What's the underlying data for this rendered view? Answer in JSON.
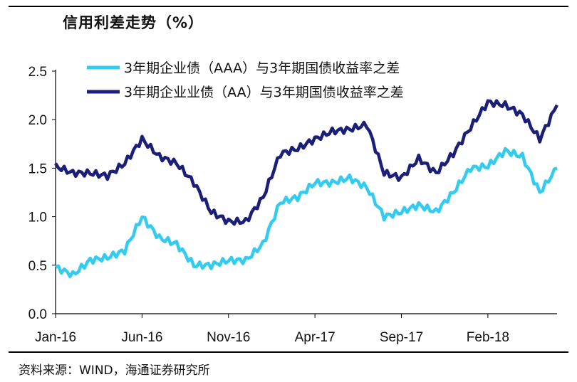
{
  "title": "信用利差走势（%）",
  "source": "资料来源：WIND，海通证券研究所",
  "chart_data": {
    "type": "line",
    "title": "信用利差走势（%）",
    "xlabel": "",
    "ylabel": "",
    "x_tick_labels": [
      "Jan-16",
      "Jun-16",
      "Nov-16",
      "Apr-17",
      "Sep-17",
      "Feb-18"
    ],
    "x_range": [
      "2016-01",
      "2018-06"
    ],
    "ylim": [
      0,
      2.5
    ],
    "y_ticks": [
      "0.0",
      "0.5",
      "1.0",
      "1.5",
      "2.0",
      "2.5"
    ],
    "grid": false,
    "legend_position": "top-left",
    "x": [
      "2016-01",
      "2016-02",
      "2016-03",
      "2016-04",
      "2016-05",
      "2016-06",
      "2016-07",
      "2016-08",
      "2016-09",
      "2016-10",
      "2016-11",
      "2016-12",
      "2017-01",
      "2017-02",
      "2017-03",
      "2017-04",
      "2017-05",
      "2017-06",
      "2017-07",
      "2017-08",
      "2017-09",
      "2017-10",
      "2017-11",
      "2017-12",
      "2018-01",
      "2018-02",
      "2018-03",
      "2018-04",
      "2018-05",
      "2018-06"
    ],
    "series": [
      {
        "name": "3年期企业债（AAA）与3年期国债收益率之差",
        "color": "#33ccf0",
        "values": [
          0.48,
          0.4,
          0.55,
          0.58,
          0.65,
          1.0,
          0.78,
          0.72,
          0.5,
          0.5,
          0.55,
          0.55,
          0.72,
          1.15,
          1.2,
          1.35,
          1.35,
          1.4,
          1.3,
          1.0,
          1.05,
          1.12,
          1.05,
          1.25,
          1.5,
          1.52,
          1.68,
          1.62,
          1.25,
          1.5
        ]
      },
      {
        "name": "3年期企业业债（AA）与3年期国债收益率之差",
        "color": "#1a1f7a",
        "values": [
          1.52,
          1.45,
          1.45,
          1.42,
          1.55,
          1.8,
          1.62,
          1.55,
          1.35,
          1.05,
          0.95,
          0.95,
          1.2,
          1.65,
          1.7,
          1.8,
          1.88,
          1.9,
          1.95,
          1.45,
          1.4,
          1.6,
          1.45,
          1.65,
          1.92,
          2.18,
          2.15,
          2.05,
          1.8,
          2.15
        ]
      }
    ]
  }
}
